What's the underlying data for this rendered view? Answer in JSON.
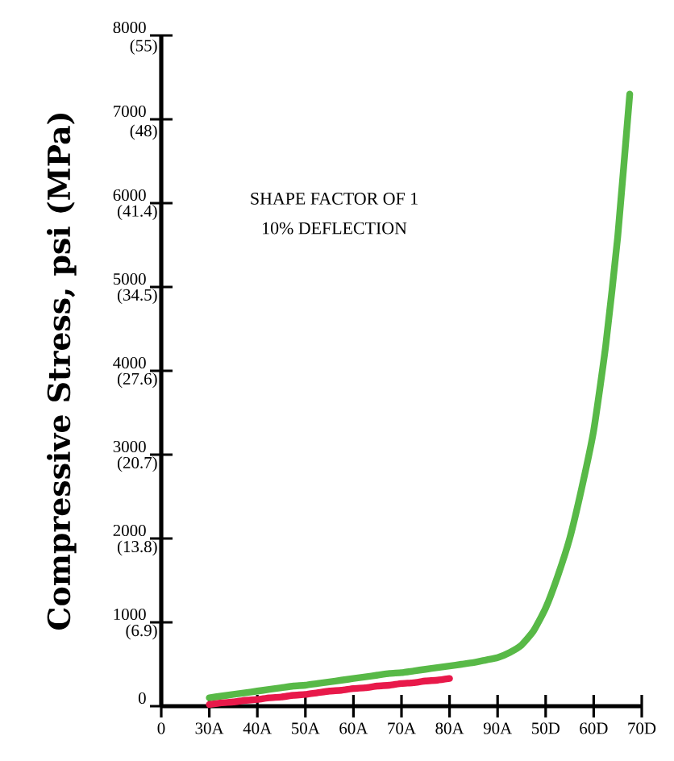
{
  "chart_data": {
    "type": "line",
    "ylabel": "Compressive Stress, psi (MPa)",
    "annotations": [
      "SHAPE FACTOR OF 1",
      "10% DEFLECTION"
    ],
    "categories": [
      "0",
      null,
      null,
      null,
      "30A",
      null,
      null,
      null,
      "40A",
      null,
      null,
      null,
      "50A",
      null,
      null,
      null,
      "60A",
      null,
      null,
      null,
      "70A",
      null,
      null,
      null,
      "80A",
      null,
      null,
      null,
      "90A",
      null,
      null,
      null,
      "50D",
      null,
      null,
      null,
      "60D",
      null,
      null,
      null,
      "70D"
    ],
    "ylim": [
      0,
      8000
    ],
    "yticks": [
      0,
      1000,
      2000,
      3000,
      4000,
      5000,
      6000,
      7000,
      8000
    ],
    "y2lim": [
      0,
      55.16
    ],
    "y2ticks": [
      {
        "value": 6.9,
        "label": "(6.9)"
      },
      {
        "value": 13.8,
        "label": "(13.8)"
      },
      {
        "value": 20.7,
        "label": "(20.7)"
      },
      {
        "value": 27.6,
        "label": "(27.6)"
      },
      {
        "value": 34.5,
        "label": "(34.5)"
      },
      {
        "value": 41.4,
        "label": "(41.4)"
      },
      {
        "value": 48,
        "label": "(48)"
      },
      {
        "value": 55,
        "label": "(55)"
      }
    ],
    "series": [
      {
        "color": "#58b947",
        "values": [
          null,
          null,
          null,
          null,
          100,
          120,
          140,
          160,
          180,
          200,
          220,
          240,
          250,
          270,
          290,
          310,
          330,
          350,
          370,
          390,
          400,
          420,
          440,
          460,
          480,
          500,
          520,
          550,
          580,
          640,
          730,
          900,
          1170,
          1550,
          2000,
          2600,
          3290,
          4300,
          5600,
          7300,
          null
        ]
      },
      {
        "color": "#e8194a",
        "values": [
          null,
          null,
          null,
          null,
          20,
          40,
          50,
          70,
          80,
          100,
          110,
          130,
          140,
          160,
          180,
          190,
          210,
          220,
          240,
          250,
          270,
          280,
          300,
          310,
          330,
          null,
          null,
          null,
          null,
          null,
          null,
          null,
          null,
          null,
          null,
          null,
          null,
          null,
          null,
          null,
          null
        ]
      }
    ]
  }
}
